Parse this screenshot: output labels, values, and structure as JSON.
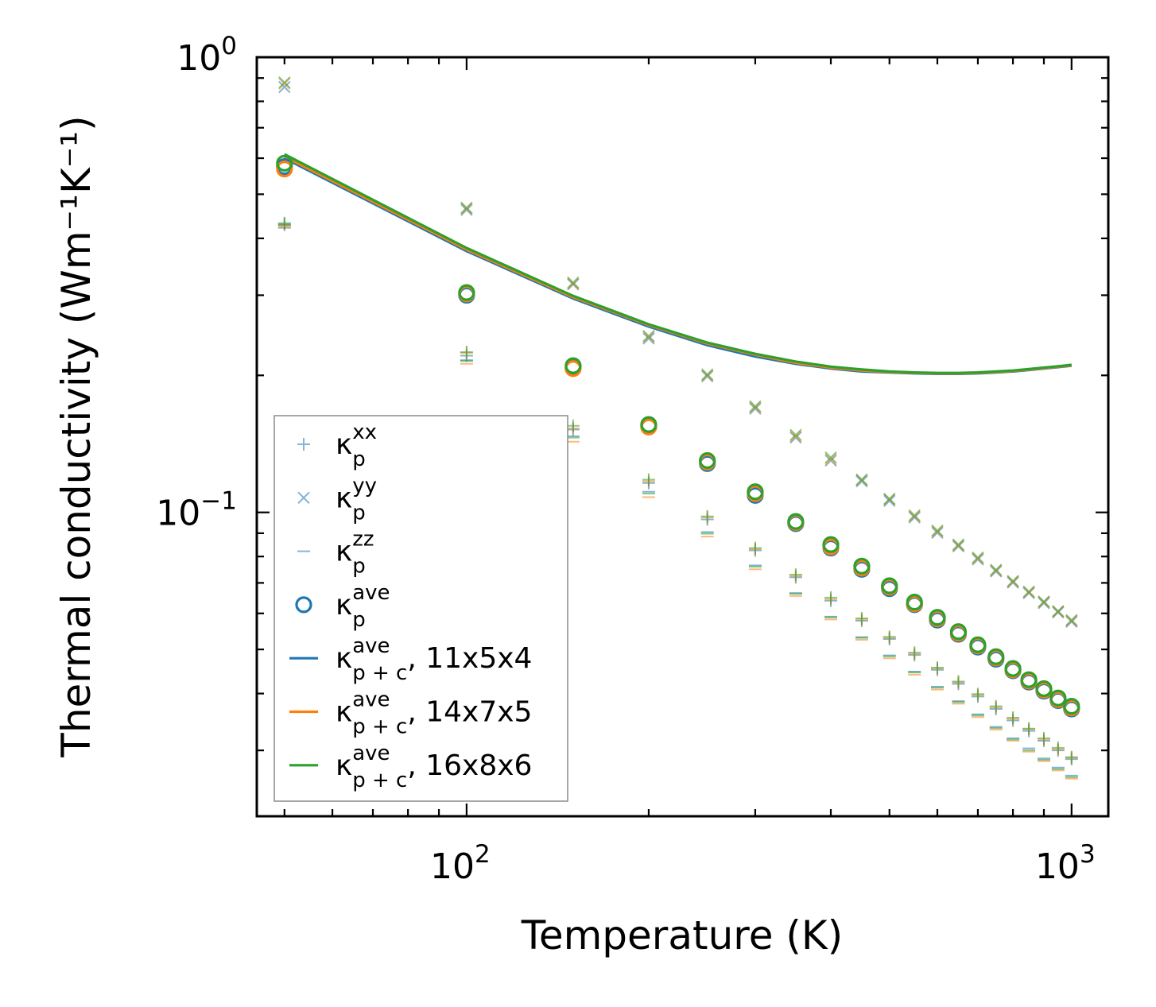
{
  "chart_data": {
    "type": "scatter",
    "x_scale": "log",
    "y_scale": "log",
    "xlabel": "Temperature (K)",
    "ylabel": "Thermal conductivity (Wm⁻¹K⁻¹)",
    "xlim": [
      45,
      1150
    ],
    "ylim": [
      0.0215,
      1.0
    ],
    "x_ticks": [
      {
        "value": 100,
        "base": "10",
        "exp": "2"
      },
      {
        "value": 1000,
        "base": "10",
        "exp": "3"
      }
    ],
    "y_ticks": [
      {
        "value": 0.1,
        "base": "10",
        "exp": "−1"
      },
      {
        "value": 1.0,
        "base": "10",
        "exp": "0"
      }
    ],
    "colors": {
      "blue": "#1f77b4",
      "orange": "#ff7f0e",
      "green": "#2ca02c"
    },
    "temperatures": [
      50,
      100,
      150,
      200,
      250,
      300,
      350,
      400,
      450,
      500,
      550,
      600,
      650,
      700,
      750,
      800,
      850,
      900,
      950,
      1000
    ],
    "series": [
      {
        "name": "kp_xx",
        "color": "#1f77b4",
        "marker": "plus",
        "values": [
          0.43,
          0.221,
          0.152,
          0.116,
          0.0965,
          0.0825,
          0.072,
          0.064,
          0.0578,
          0.0527,
          0.0486,
          0.0451,
          0.042,
          0.0394,
          0.037,
          0.0349,
          0.0331,
          0.0315,
          0.03,
          0.0287
        ]
      },
      {
        "name": "kp_yy",
        "color": "#1f77b4",
        "marker": "x",
        "values": [
          0.86,
          0.462,
          0.317,
          0.241,
          0.199,
          0.169,
          0.146,
          0.13,
          0.117,
          0.106,
          0.0975,
          0.0902,
          0.0842,
          0.0788,
          0.0742,
          0.0701,
          0.0665,
          0.0632,
          0.0603,
          0.0575
        ]
      },
      {
        "name": "kp_zz",
        "color": "#1f77b4",
        "marker": "hline",
        "values": [
          0.422,
          0.216,
          0.147,
          0.111,
          0.0905,
          0.0765,
          0.0665,
          0.059,
          0.0532,
          0.0485,
          0.0447,
          0.0414,
          0.0385,
          0.036,
          0.0338,
          0.0319,
          0.0303,
          0.0288,
          0.0275,
          0.0264
        ]
      },
      {
        "name": "kp_ave",
        "color": "#1f77b4",
        "marker": "circle",
        "values": [
          0.575,
          0.3,
          0.208,
          0.155,
          0.128,
          0.109,
          0.0945,
          0.0835,
          0.075,
          0.068,
          0.0627,
          0.058,
          0.054,
          0.0506,
          0.0476,
          0.0449,
          0.0424,
          0.0405,
          0.0386,
          0.037
        ]
      },
      {
        "name": "kp_xx_14",
        "color": "#ff7f0e",
        "marker": "plus",
        "values": [
          0.428,
          0.224,
          0.153,
          0.117,
          0.0975,
          0.083,
          0.0725,
          0.0645,
          0.0582,
          0.053,
          0.0489,
          0.0454,
          0.0423,
          0.0397,
          0.0373,
          0.0352,
          0.0334,
          0.0317,
          0.0302,
          0.0289
        ]
      },
      {
        "name": "kp_yy_14",
        "color": "#ff7f0e",
        "marker": "x",
        "values": [
          0.875,
          0.465,
          0.318,
          0.243,
          0.2,
          0.17,
          0.147,
          0.131,
          0.118,
          0.107,
          0.098,
          0.0908,
          0.0846,
          0.0792,
          0.0745,
          0.0704,
          0.0667,
          0.0635,
          0.0605,
          0.0578
        ]
      },
      {
        "name": "kp_zz_14",
        "color": "#ff7f0e",
        "marker": "hline",
        "values": [
          0.425,
          0.212,
          0.143,
          0.108,
          0.0885,
          0.075,
          0.0655,
          0.0582,
          0.0525,
          0.0478,
          0.044,
          0.0408,
          0.038,
          0.0355,
          0.0333,
          0.0315,
          0.0298,
          0.0284,
          0.0271,
          0.026
        ]
      },
      {
        "name": "kp_ave_14",
        "color": "#ff7f0e",
        "marker": "circle",
        "values": [
          0.568,
          0.302,
          0.207,
          0.154,
          0.129,
          0.11,
          0.095,
          0.084,
          0.0755,
          0.0685,
          0.063,
          0.0584,
          0.0543,
          0.0509,
          0.0479,
          0.0451,
          0.0426,
          0.0407,
          0.0388,
          0.0372
        ]
      },
      {
        "name": "kp_xx_16",
        "color": "#2ca02c",
        "marker": "plus",
        "values": [
          0.432,
          0.225,
          0.155,
          0.118,
          0.098,
          0.0835,
          0.073,
          0.065,
          0.0585,
          0.0533,
          0.0492,
          0.0456,
          0.0425,
          0.0399,
          0.0375,
          0.0354,
          0.0335,
          0.0319,
          0.0304,
          0.029
        ]
      },
      {
        "name": "kp_yy_16",
        "color": "#2ca02c",
        "marker": "x",
        "values": [
          0.88,
          0.467,
          0.32,
          0.244,
          0.201,
          0.171,
          0.148,
          0.132,
          0.118,
          0.107,
          0.0985,
          0.0912,
          0.085,
          0.0796,
          0.0748,
          0.0707,
          0.067,
          0.0637,
          0.0607,
          0.058
        ]
      },
      {
        "name": "kp_zz_16",
        "color": "#2ca02c",
        "marker": "hline",
        "values": [
          0.428,
          0.215,
          0.146,
          0.11,
          0.0898,
          0.076,
          0.0662,
          0.0588,
          0.053,
          0.0483,
          0.0445,
          0.0412,
          0.0383,
          0.0358,
          0.0336,
          0.0317,
          0.03,
          0.0286,
          0.0273,
          0.0262
        ]
      },
      {
        "name": "kp_ave_16",
        "color": "#2ca02c",
        "marker": "circle",
        "values": [
          0.585,
          0.304,
          0.21,
          0.156,
          0.13,
          0.111,
          0.0955,
          0.085,
          0.0762,
          0.069,
          0.0635,
          0.0588,
          0.0547,
          0.0512,
          0.0482,
          0.0454,
          0.0429,
          0.041,
          0.0391,
          0.0375
        ]
      },
      {
        "name": "kpc_ave_11x5x4",
        "color": "#1f77b4",
        "marker": "line",
        "values": [
          0.6,
          0.375,
          0.295,
          0.256,
          0.233,
          0.22,
          0.212,
          0.207,
          0.204,
          0.203,
          0.202,
          0.2015,
          0.2015,
          0.202,
          0.203,
          0.204,
          0.2055,
          0.207,
          0.2085,
          0.21
        ]
      },
      {
        "name": "kpc_ave_14x7x5",
        "color": "#ff7f0e",
        "marker": "line",
        "values": [
          0.605,
          0.378,
          0.297,
          0.258,
          0.235,
          0.222,
          0.213,
          0.208,
          0.205,
          0.2035,
          0.2025,
          0.202,
          0.202,
          0.2025,
          0.2035,
          0.2045,
          0.206,
          0.2075,
          0.209,
          0.2105
        ]
      },
      {
        "name": "kpc_ave_16x8x6",
        "color": "#2ca02c",
        "marker": "line",
        "values": [
          0.612,
          0.381,
          0.299,
          0.259,
          0.236,
          0.223,
          0.2145,
          0.209,
          0.206,
          0.204,
          0.203,
          0.2025,
          0.2025,
          0.203,
          0.204,
          0.205,
          0.2065,
          0.208,
          0.2095,
          0.211
        ]
      }
    ],
    "legend": {
      "position": "lower-left",
      "entries": [
        {
          "kappa": "κ",
          "sub": "p",
          "sup": "xx",
          "suffix": "",
          "marker": "plus",
          "color": "#1f77b4"
        },
        {
          "kappa": "κ",
          "sub": "p",
          "sup": "yy",
          "suffix": "",
          "marker": "x",
          "color": "#1f77b4"
        },
        {
          "kappa": "κ",
          "sub": "p",
          "sup": "zz",
          "suffix": "",
          "marker": "hline",
          "color": "#1f77b4"
        },
        {
          "kappa": "κ",
          "sub": "p",
          "sup": "ave",
          "suffix": "",
          "marker": "circle",
          "color": "#1f77b4"
        },
        {
          "kappa": "κ",
          "sub": "p + c",
          "sup": "ave",
          "suffix": ", 11x5x4",
          "marker": "line",
          "color": "#1f77b4"
        },
        {
          "kappa": "κ",
          "sub": "p + c",
          "sup": "ave",
          "suffix": ", 14x7x5",
          "marker": "line",
          "color": "#ff7f0e"
        },
        {
          "kappa": "κ",
          "sub": "p + c",
          "sup": "ave",
          "suffix": ", 16x8x6",
          "marker": "line",
          "color": "#2ca02c"
        }
      ]
    }
  }
}
